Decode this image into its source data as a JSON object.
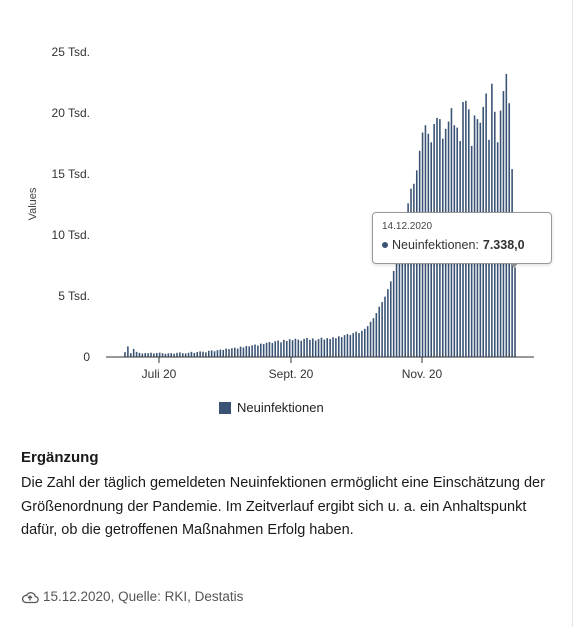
{
  "chart_data": {
    "type": "bar",
    "ylabel": "Values",
    "ylim": [
      0,
      25000
    ],
    "y_ticks": [
      {
        "value": 0,
        "label": "0"
      },
      {
        "value": 5000,
        "label": "5 Tsd."
      },
      {
        "value": 10000,
        "label": "10 Tsd."
      },
      {
        "value": 15000,
        "label": "15 Tsd."
      },
      {
        "value": 20000,
        "label": "20 Tsd."
      },
      {
        "value": 25000,
        "label": "25 Tsd."
      }
    ],
    "x_ticks": [
      "Juli 20",
      "Sept. 20",
      "Nov. 20"
    ],
    "series": [
      {
        "name": "Neuinfektionen",
        "color": "#3a5375",
        "values": [
          400,
          870,
          310,
          660,
          420,
          340,
          280,
          320,
          310,
          350,
          290,
          330,
          360,
          310,
          260,
          300,
          320,
          270,
          340,
          380,
          310,
          290,
          350,
          420,
          330,
          410,
          460,
          430,
          380,
          510,
          540,
          470,
          560,
          610,
          580,
          690,
          650,
          720,
          760,
          690,
          850,
          780,
          900,
          870,
          960,
          1020,
          940,
          1100,
          1060,
          1170,
          1230,
          1150,
          1290,
          1350,
          1200,
          1400,
          1310,
          1460,
          1380,
          1500,
          1420,
          1330,
          1490,
          1560,
          1410,
          1520,
          1350,
          1470,
          1590,
          1430,
          1550,
          1480,
          1620,
          1540,
          1700,
          1630,
          1790,
          1880,
          1800,
          1950,
          2080,
          1960,
          2150,
          2310,
          2530,
          2890,
          3180,
          3600,
          4120,
          4500,
          4950,
          5560,
          6200,
          7050,
          7900,
          8950,
          10200,
          11400,
          12600,
          13800,
          14200,
          15300,
          16900,
          18400,
          19000,
          18300,
          17600,
          19100,
          19600,
          19500,
          17900,
          18700,
          19300,
          20400,
          19000,
          18800,
          17700,
          20900,
          21000,
          20300,
          17300,
          19800,
          19500,
          19200,
          20500,
          21600,
          17800,
          22400,
          20100,
          17600,
          20200,
          21800,
          23200,
          20800,
          15400,
          7338
        ]
      }
    ]
  },
  "tooltip": {
    "date": "14.12.2020",
    "label": "Neuinfektionen:",
    "value": "7.338,0"
  },
  "supplement": {
    "heading": "Ergänzung",
    "text": "Die Zahl der täglich gemeldeten Neuinfektionen ermöglicht eine Einschätzung der Größenordnung der Pandemie. Im Zeitverlauf ergibt sich u. a. ein Anhaltspunkt dafür, ob die getroffenen Maßnahmen Erfolg haben."
  },
  "footer": {
    "icon": "cloud-upload-icon",
    "text": "15.12.2020, Quelle: RKI, Destatis"
  }
}
